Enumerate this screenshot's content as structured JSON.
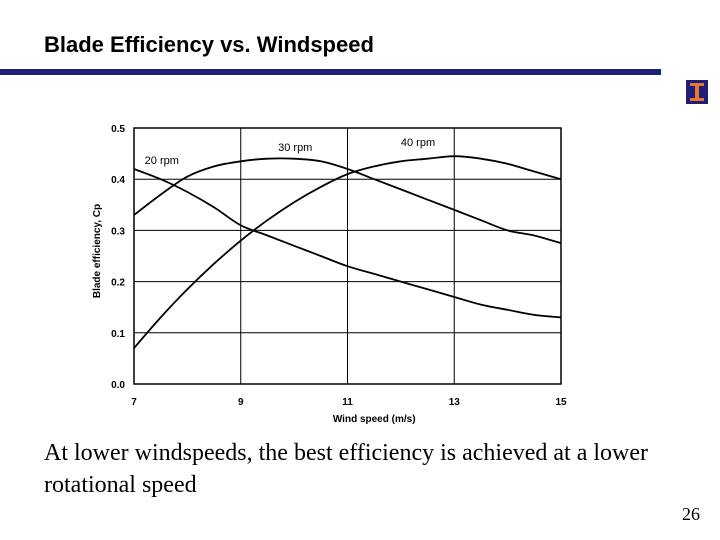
{
  "slide": {
    "title": "Blade Efficiency vs. Windspeed",
    "caption": "At lower windspeeds, the best efficiency is achieved at a lower rotational speed",
    "page_number": "26"
  },
  "colors": {
    "title_rule": "#1f1f7a",
    "logo_background": "#1f1f7a",
    "logo_accent": "#e8792a"
  },
  "chart_data": {
    "type": "line",
    "title": "",
    "xlabel": "Wind speed (m/s)",
    "ylabel": "Blade efficiency, Cp",
    "xlim": [
      7,
      15
    ],
    "ylim": [
      0,
      0.5
    ],
    "x_ticks": [
      "7",
      "9",
      "11",
      "13",
      "15"
    ],
    "y_ticks": [
      "0.0",
      "0.1",
      "0.2",
      "0.3",
      "0.4",
      "0.5"
    ],
    "grid": true,
    "legend": "none",
    "series": [
      {
        "name": "20 rpm",
        "points": [
          [
            7,
            0.33
          ],
          [
            7.5,
            0.37
          ],
          [
            8,
            0.405
          ],
          [
            8.5,
            0.425
          ],
          [
            9,
            0.435
          ],
          [
            9.5,
            0.44
          ],
          [
            10,
            0.44
          ],
          [
            10.5,
            0.435
          ],
          [
            11,
            0.42
          ],
          [
            11.5,
            0.4
          ],
          [
            12,
            0.38
          ],
          [
            12.5,
            0.36
          ],
          [
            13,
            0.34
          ],
          [
            13.5,
            0.32
          ],
          [
            14,
            0.3
          ],
          [
            14.5,
            0.29
          ],
          [
            15,
            0.275
          ]
        ]
      },
      {
        "name": "30 rpm",
        "points": [
          [
            7,
            0.42
          ],
          [
            7.5,
            0.4
          ],
          [
            8,
            0.375
          ],
          [
            8.5,
            0.345
          ],
          [
            9,
            0.31
          ],
          [
            9.5,
            0.29
          ],
          [
            10,
            0.27
          ],
          [
            10.5,
            0.25
          ],
          [
            11,
            0.23
          ],
          [
            11.5,
            0.215
          ],
          [
            12,
            0.2
          ],
          [
            12.5,
            0.185
          ],
          [
            13,
            0.17
          ],
          [
            13.5,
            0.155
          ],
          [
            14,
            0.145
          ],
          [
            14.5,
            0.135
          ],
          [
            15,
            0.13
          ]
        ]
      },
      {
        "name": "40 rpm",
        "points": [
          [
            7,
            0.07
          ],
          [
            7.5,
            0.13
          ],
          [
            8,
            0.185
          ],
          [
            8.5,
            0.235
          ],
          [
            9,
            0.28
          ],
          [
            9.5,
            0.32
          ],
          [
            10,
            0.355
          ],
          [
            10.5,
            0.385
          ],
          [
            11,
            0.41
          ],
          [
            11.5,
            0.425
          ],
          [
            12,
            0.435
          ],
          [
            12.5,
            0.44
          ],
          [
            13,
            0.445
          ],
          [
            13.5,
            0.44
          ],
          [
            14,
            0.43
          ],
          [
            14.5,
            0.415
          ],
          [
            15,
            0.4
          ]
        ]
      }
    ],
    "series_labels": [
      {
        "text": "20 rpm",
        "x": 7.2,
        "y": 0.43
      },
      {
        "text": "30 rpm",
        "x": 9.7,
        "y": 0.455
      },
      {
        "text": "40 rpm",
        "x": 12.0,
        "y": 0.465
      }
    ]
  }
}
